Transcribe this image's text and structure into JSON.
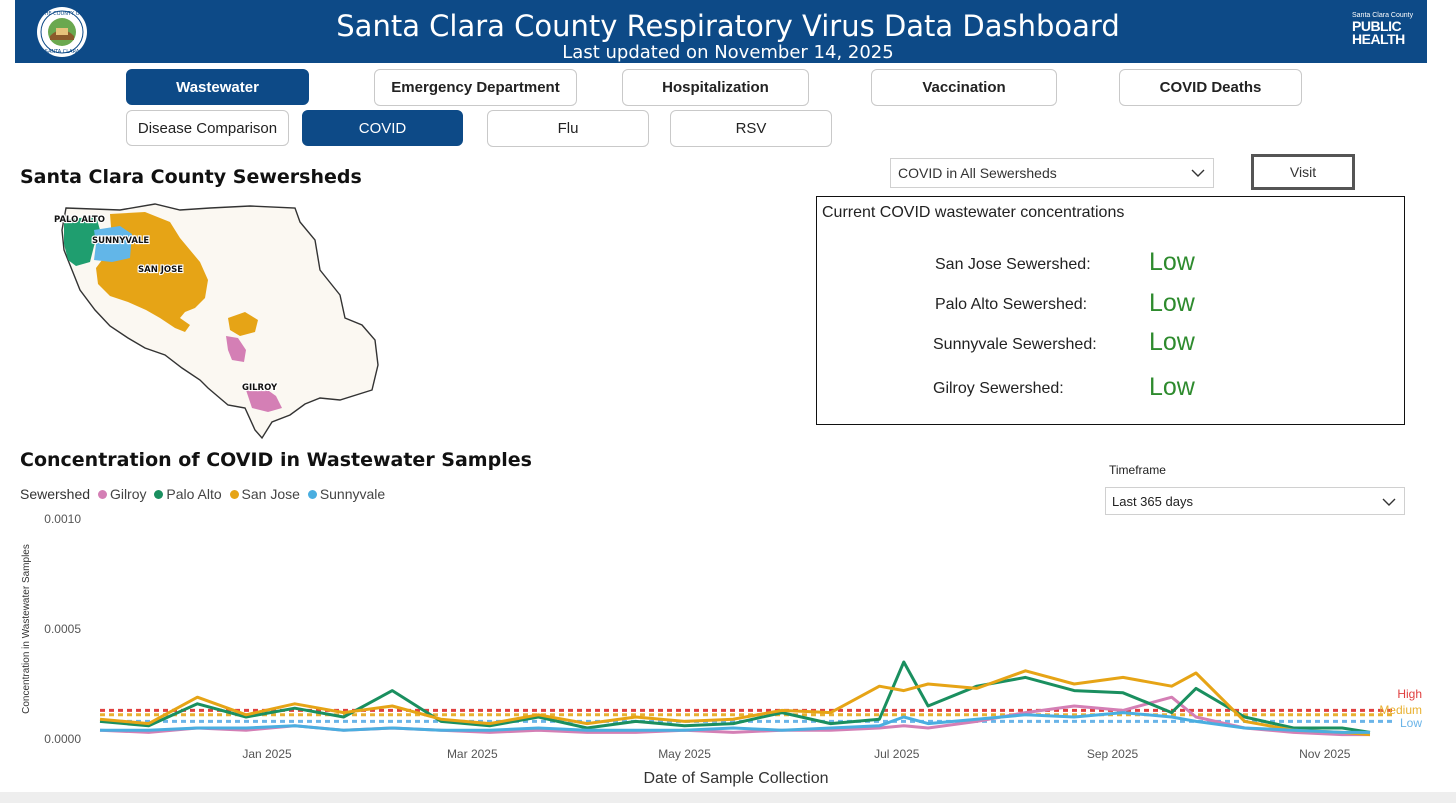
{
  "header": {
    "title": "Santa Clara County Respiratory Virus Data Dashboard",
    "updated": "Last updated on November 14, 2025",
    "seal_top_text": "THE COUNTY OF",
    "seal_bottom_text": "SANTA CLARA",
    "logo_small": "Santa Clara County",
    "logo_line1": "PUBLIC",
    "logo_line2": "HEALTH",
    "brand_color": "#0d4a87"
  },
  "nav": {
    "primary": [
      "Wastewater",
      "Emergency Department",
      "Hospitalization",
      "Vaccination",
      "COVID Deaths"
    ],
    "primary_active": "Wastewater",
    "secondary": [
      "Disease Comparison",
      "COVID",
      "Flu",
      "RSV"
    ],
    "secondary_active": "COVID"
  },
  "map": {
    "title": "Santa Clara County Sewersheds",
    "regions": [
      "PALO ALTO",
      "SUNNYVALE",
      "SAN JOSE",
      "GILROY"
    ],
    "colors": {
      "palo_alto": "#1f9e6f",
      "sunnyvale": "#62b6e8",
      "san_jose": "#e6a416",
      "gilroy": "#d47fb5",
      "county": "#fbf8f2"
    }
  },
  "sewershed_select": {
    "value": "COVID in All Sewersheds",
    "icon": "chevron-down-icon"
  },
  "visit_button": {
    "label": "Visit"
  },
  "current": {
    "title": "Current COVID wastewater concentrations",
    "rows": [
      {
        "label": "San Jose Sewershed:",
        "level": "Low"
      },
      {
        "label": "Palo Alto Sewershed:",
        "level": "Low"
      },
      {
        "label": "Sunnyvale Sewershed:",
        "level": "Low"
      },
      {
        "label": "Gilroy Sewershed:",
        "level": "Low"
      }
    ],
    "level_color": "#2e8b2e"
  },
  "timeframe": {
    "label": "Timeframe",
    "value": "Last 365 days"
  },
  "chart_data": {
    "type": "line",
    "title": "Concentration of COVID in Wastewater Samples",
    "xlabel": "Date of Sample Collection",
    "ylabel": "Concentration in Wastewater Samples",
    "legend_title": "Sewershed",
    "legend_position": "top-left",
    "x_ticks": [
      "Jan 2025",
      "Mar 2025",
      "May 2025",
      "Jul 2025",
      "Sep 2025",
      "Nov 2025"
    ],
    "y_ticks": [
      "0.0000",
      "0.0005",
      "0.0010"
    ],
    "ylim": [
      0,
      0.001
    ],
    "xlim": [
      "2024-11-14",
      "2025-11-14"
    ],
    "thresholds": [
      {
        "name": "High",
        "value": 0.00013,
        "color": "#e04040"
      },
      {
        "name": "Medium",
        "value": 0.00011,
        "color": "#e8b030"
      },
      {
        "name": "Low",
        "value": 8e-05,
        "color": "#6ab4e8"
      }
    ],
    "x": [
      "2024-11-14",
      "2024-11-28",
      "2024-12-12",
      "2024-12-26",
      "2025-01-09",
      "2025-01-23",
      "2025-02-06",
      "2025-02-20",
      "2025-03-06",
      "2025-03-20",
      "2025-04-03",
      "2025-04-17",
      "2025-05-01",
      "2025-05-15",
      "2025-05-29",
      "2025-06-12",
      "2025-06-26",
      "2025-07-03",
      "2025-07-10",
      "2025-07-24",
      "2025-08-07",
      "2025-08-21",
      "2025-09-04",
      "2025-09-18",
      "2025-09-25",
      "2025-10-09",
      "2025-10-23",
      "2025-11-06",
      "2025-11-14"
    ],
    "series": [
      {
        "name": "Gilroy",
        "color": "#d47fb5",
        "values": [
          4e-05,
          3e-05,
          5e-05,
          4e-05,
          6e-05,
          4e-05,
          5e-05,
          4e-05,
          3e-05,
          4e-05,
          3e-05,
          3e-05,
          4e-05,
          3e-05,
          4e-05,
          4e-05,
          5e-05,
          6e-05,
          5e-05,
          8e-05,
          0.00012,
          0.00015,
          0.00013,
          0.00019,
          0.0001,
          5e-05,
          3e-05,
          2e-05,
          2e-05
        ]
      },
      {
        "name": "Palo Alto",
        "color": "#1a8f5f",
        "values": [
          8e-05,
          6e-05,
          0.00016,
          0.0001,
          0.00014,
          0.0001,
          0.00022,
          8e-05,
          6e-05,
          0.0001,
          5e-05,
          8e-05,
          6e-05,
          7e-05,
          0.00012,
          7e-05,
          9e-05,
          0.00035,
          0.00015,
          0.00024,
          0.00028,
          0.00022,
          0.00021,
          0.00012,
          0.00023,
          0.0001,
          5e-05,
          5e-05,
          3e-05
        ]
      },
      {
        "name": "San Jose",
        "color": "#e6a416",
        "values": [
          9e-05,
          7e-05,
          0.00019,
          0.00011,
          0.00016,
          0.00012,
          0.00015,
          9e-05,
          7e-05,
          0.00011,
          7e-05,
          0.0001,
          8e-05,
          9e-05,
          0.00013,
          0.00012,
          0.00024,
          0.00022,
          0.00025,
          0.00023,
          0.00031,
          0.00025,
          0.00028,
          0.00024,
          0.0003,
          8e-05,
          4e-05,
          3e-05,
          2e-05
        ]
      },
      {
        "name": "Sunnyvale",
        "color": "#4aaee0",
        "values": [
          4e-05,
          4e-05,
          5e-05,
          5e-05,
          6e-05,
          4e-05,
          5e-05,
          4e-05,
          4e-05,
          5e-05,
          4e-05,
          4e-05,
          4e-05,
          5e-05,
          4e-05,
          5e-05,
          6e-05,
          0.0001,
          7e-05,
          9e-05,
          0.00011,
          0.0001,
          0.00012,
          0.0001,
          8e-05,
          5e-05,
          4e-05,
          3e-05,
          3e-05
        ]
      }
    ]
  }
}
